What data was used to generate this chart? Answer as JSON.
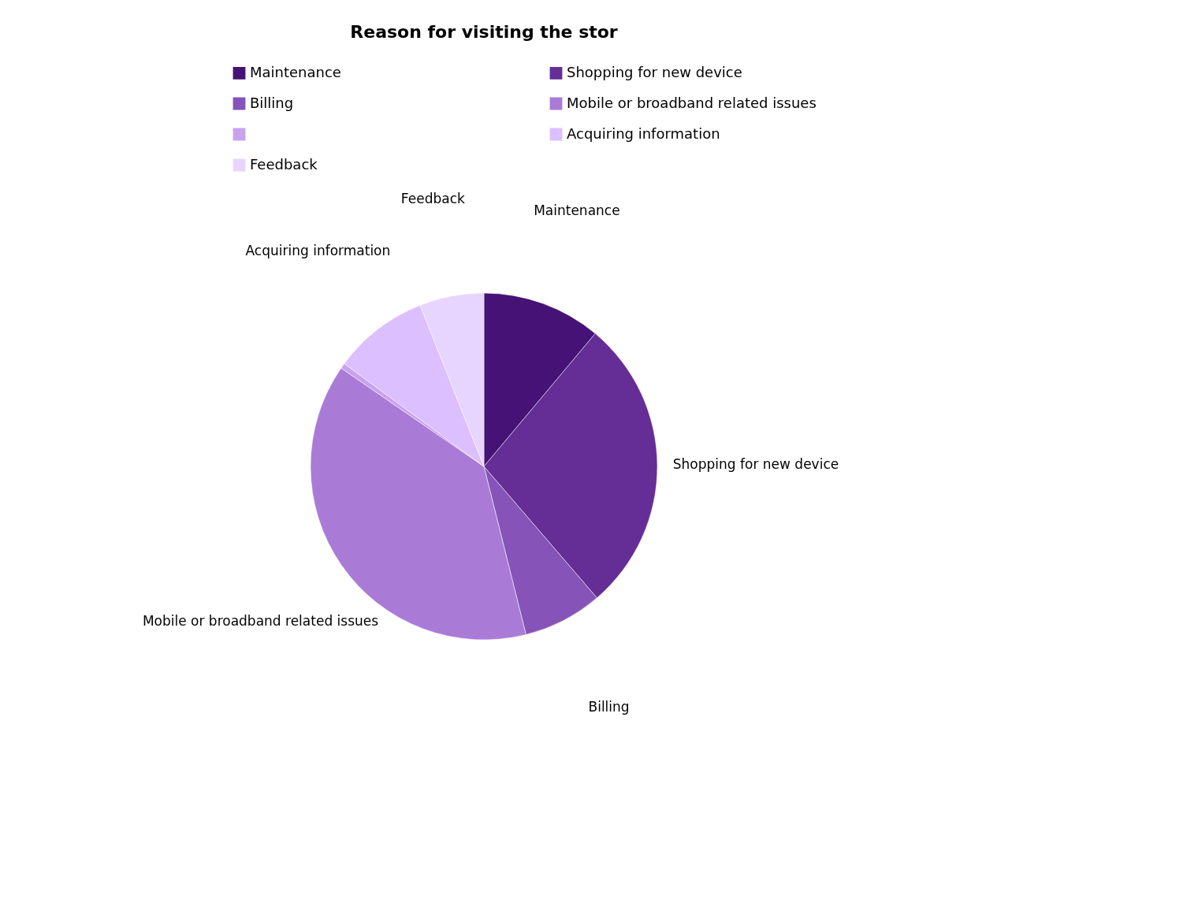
{
  "chart_data": {
    "type": "pie",
    "title": "Reason for visiting the stor",
    "categories": [
      "Maintenance",
      "Shopping for new device",
      "Billing",
      "Mobile or broadband related issues",
      null,
      "Acquiring information",
      "Feedback"
    ],
    "values": [
      11.1,
      27.6,
      7.4,
      38.5,
      0.5,
      8.9,
      6.0
    ],
    "colors": [
      "#461275",
      "#652d96",
      "#8653b8",
      "#aa7bd6",
      "#c9a2ee",
      "#dcbfff",
      "#e8d5ff"
    ],
    "legend": "top"
  }
}
